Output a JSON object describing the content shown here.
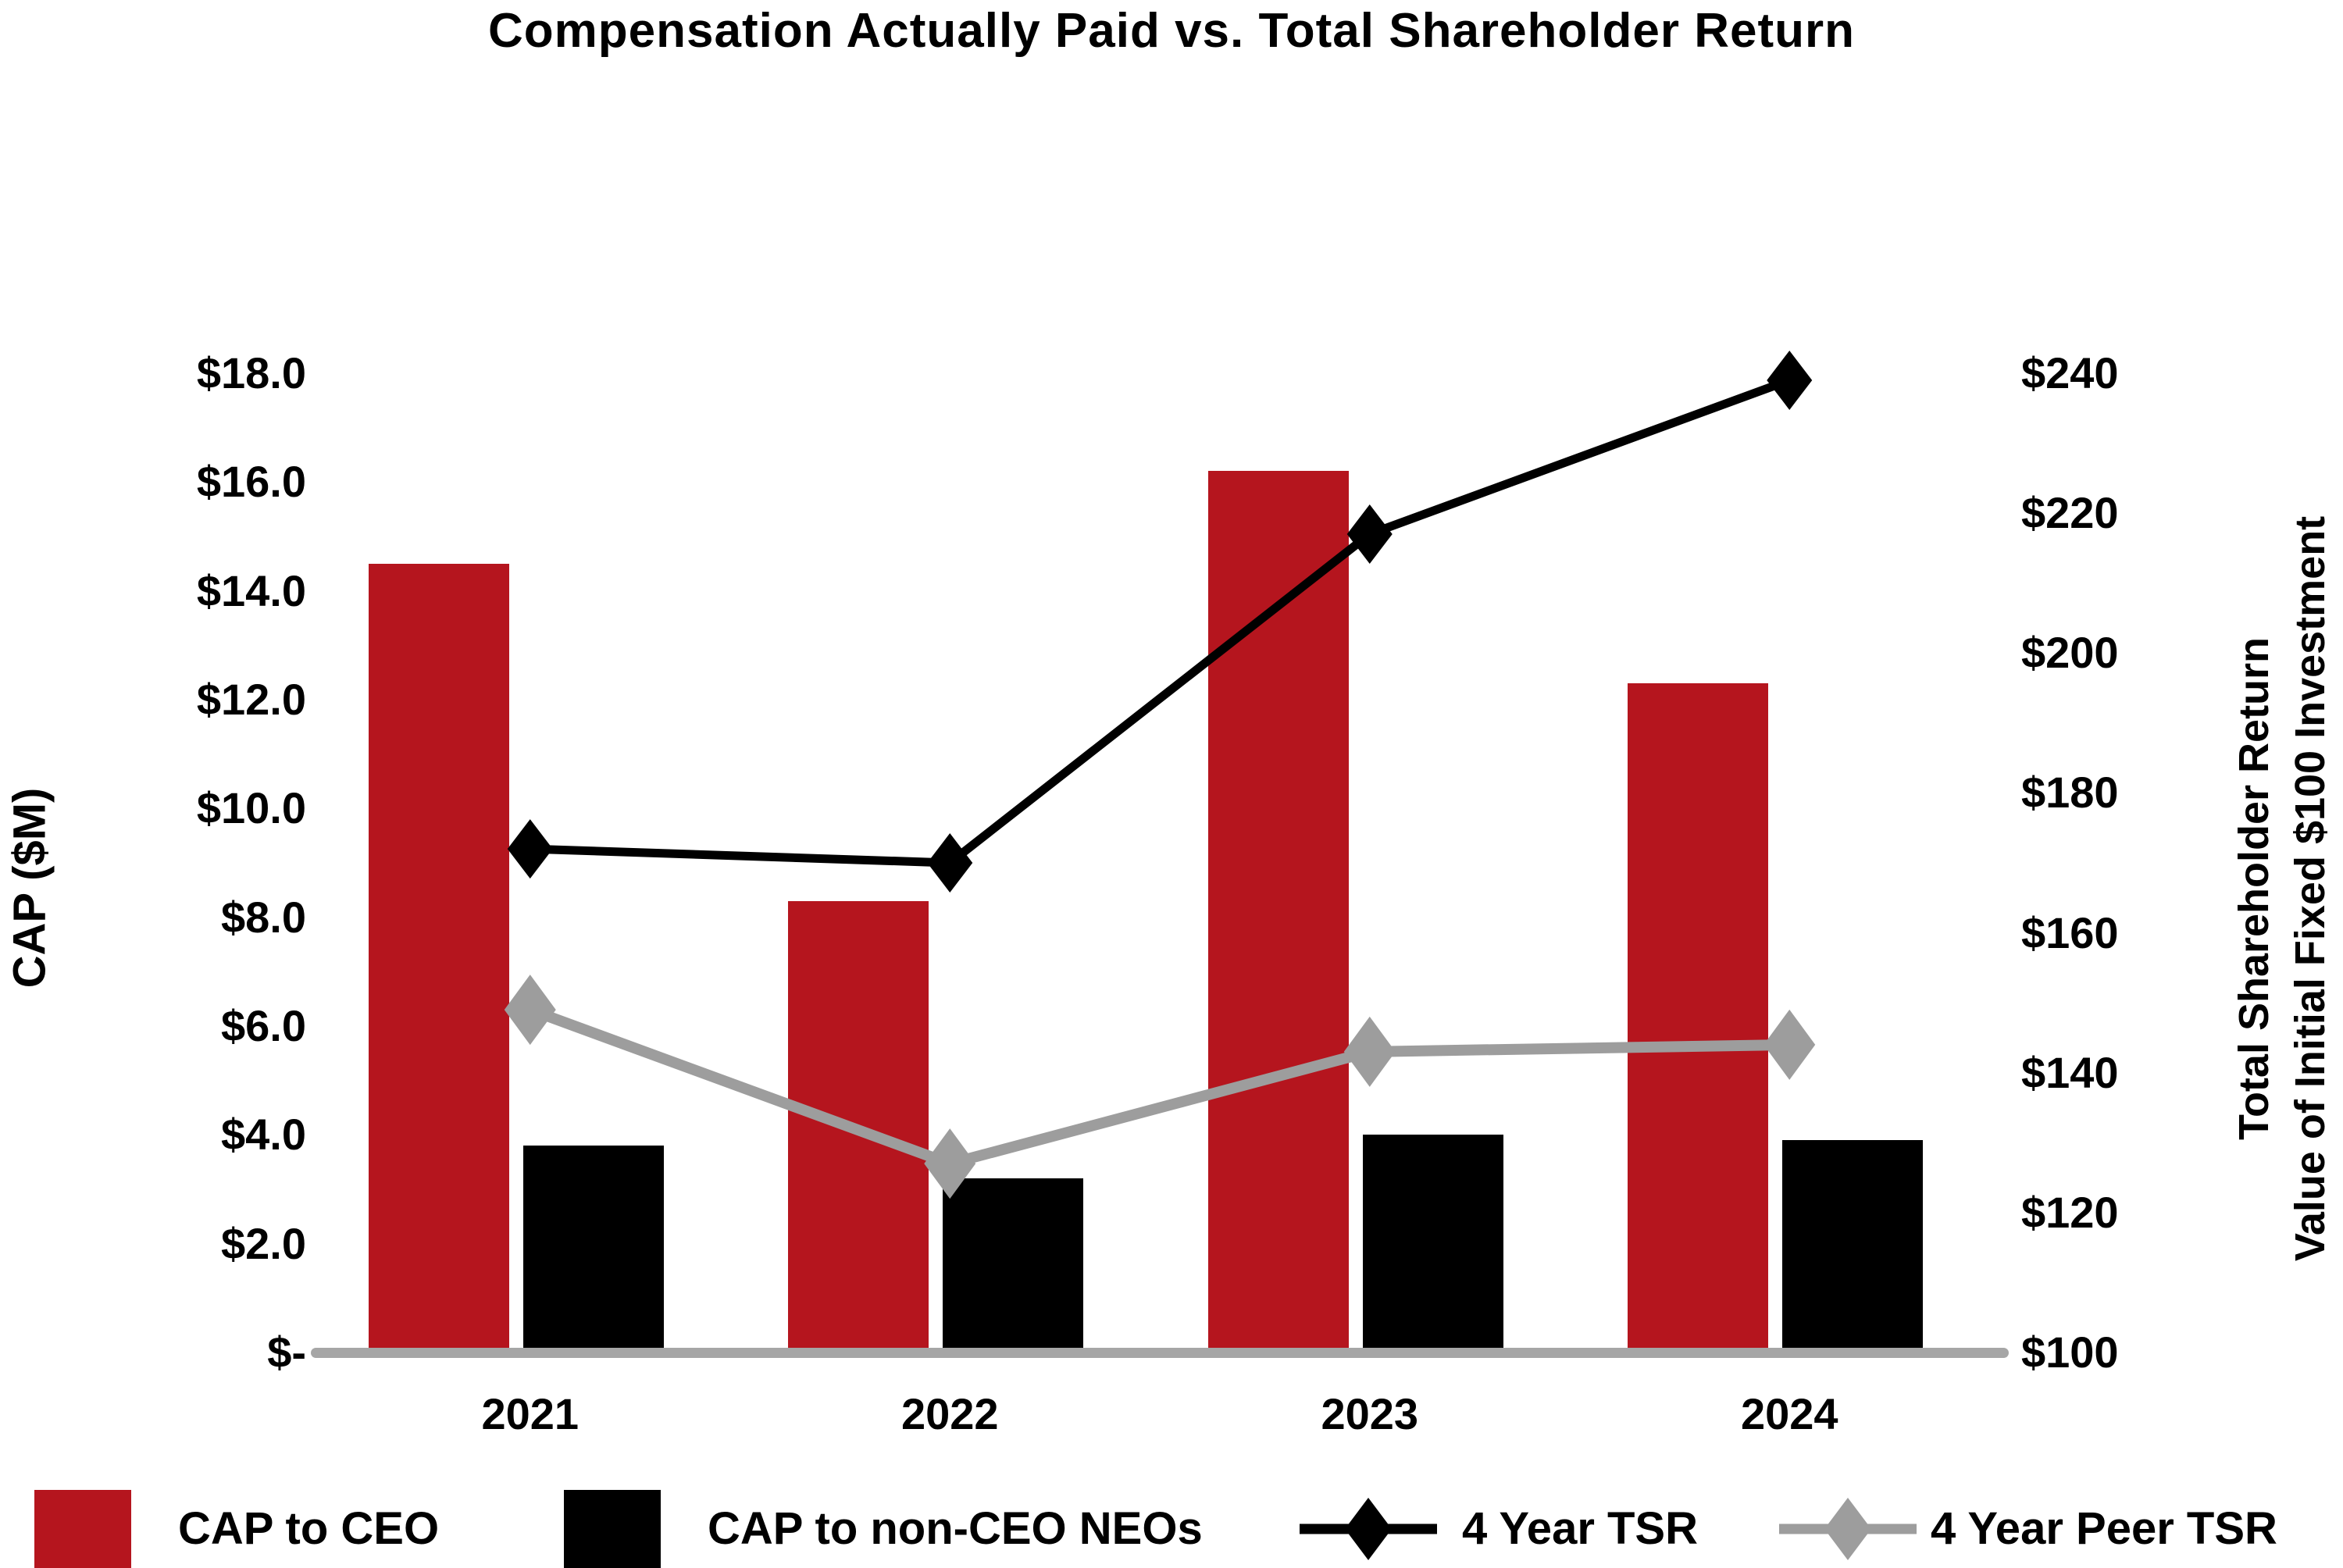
{
  "title": "Compensation Actually Paid vs. Total Shareholder Return",
  "colors": {
    "cap_ceo_red": "#B5151E",
    "cap_neo_black": "#000000",
    "tsr_line_black": "#000000",
    "peer_tsr_gray": "#9D9D9D",
    "axis_gray": "#A6A6A6",
    "background": "#FFFFFF",
    "text": "#000000"
  },
  "chart_data": {
    "type": "combo-bar-line",
    "title": "Compensation Actually Paid vs. Total Shareholder Return",
    "categories": [
      "2021",
      "2022",
      "2023",
      "2024"
    ],
    "series": [
      {
        "name": "CAP to CEO",
        "type": "bar",
        "axis": "left",
        "color": "#B5151E",
        "values": [
          14.5,
          8.3,
          16.2,
          12.3
        ]
      },
      {
        "name": "CAP to non-CEO NEOs",
        "type": "bar",
        "axis": "left",
        "color": "#000000",
        "values": [
          3.8,
          3.2,
          4.0,
          3.9
        ]
      },
      {
        "name": "4 Year TSR",
        "type": "line",
        "axis": "right",
        "color": "#000000",
        "marker": "diamond",
        "values": [
          172,
          170,
          217,
          239
        ]
      },
      {
        "name": "4 Year Peer TSR",
        "type": "line",
        "axis": "right",
        "color": "#9D9D9D",
        "marker": "diamond",
        "values": [
          149,
          127,
          143,
          144
        ]
      }
    ],
    "left_axis": {
      "title": "CAP ($M)",
      "min": 0,
      "max": 18,
      "ticks": [
        {
          "value": 0,
          "label": "$-"
        },
        {
          "value": 2,
          "label": "$2.0"
        },
        {
          "value": 4,
          "label": "$4.0"
        },
        {
          "value": 6,
          "label": "$6.0"
        },
        {
          "value": 8,
          "label": "$8.0"
        },
        {
          "value": 10,
          "label": "$10.0"
        },
        {
          "value": 12,
          "label": "$12.0"
        },
        {
          "value": 14,
          "label": "$14.0"
        },
        {
          "value": 16,
          "label": "$16.0"
        },
        {
          "value": 18,
          "label": "$18.0"
        }
      ]
    },
    "right_axis": {
      "title_line1": "Total Shareholder Return",
      "title_line2": "Value of Initial Fixed $100 Investment",
      "min": 100,
      "max": 240,
      "ticks": [
        {
          "value": 100,
          "label": "$100"
        },
        {
          "value": 120,
          "label": "$120"
        },
        {
          "value": 140,
          "label": "$140"
        },
        {
          "value": 160,
          "label": "$160"
        },
        {
          "value": 180,
          "label": "$180"
        },
        {
          "value": 200,
          "label": "$200"
        },
        {
          "value": 220,
          "label": "$220"
        },
        {
          "value": 240,
          "label": "$240"
        }
      ]
    },
    "legend_position": "bottom",
    "grid": false
  },
  "legend": [
    {
      "label": "CAP to CEO",
      "swatch": "bar",
      "color": "#B5151E"
    },
    {
      "label": "CAP to non-CEO NEOs",
      "swatch": "bar",
      "color": "#000000"
    },
    {
      "label": "4 Year TSR",
      "swatch": "line-diamond",
      "color": "#000000"
    },
    {
      "label": "4 Year Peer TSR",
      "swatch": "line-diamond",
      "color": "#9D9D9D"
    }
  ]
}
